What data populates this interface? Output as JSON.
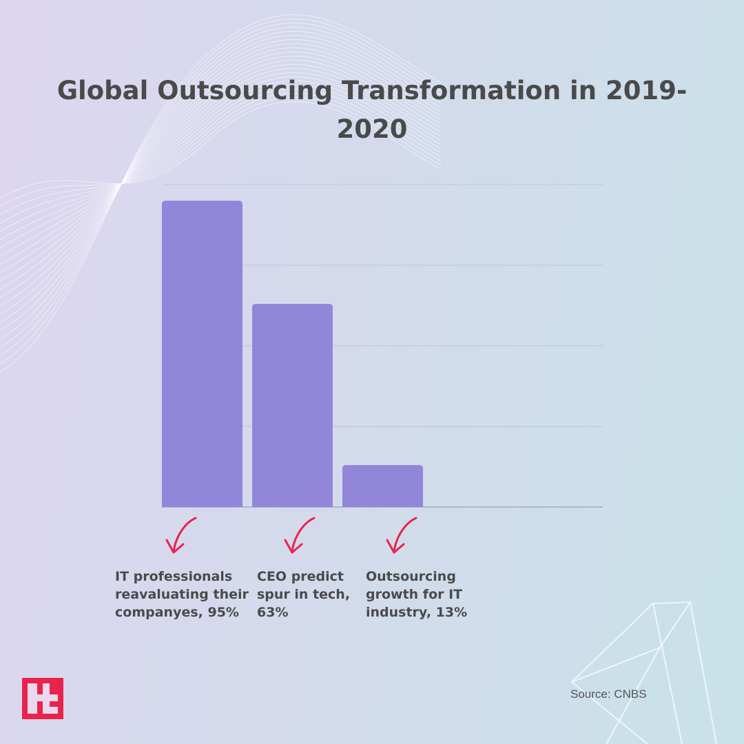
{
  "chart_data": {
    "type": "bar",
    "title": "Global Outsourcing Transformation in 2019-2020",
    "categories": [
      "IT professionals reavaluating their companyes, 95%",
      "CEO predict spur in tech, 63%",
      "Outsourcing growth for IT industry, 13%"
    ],
    "values": [
      95,
      63,
      13
    ],
    "ylim": [
      0,
      100
    ],
    "grid": true,
    "bar_color": "#9286db",
    "arrow_color": "#e8234c"
  },
  "source": "Source: CNBS",
  "logo": {
    "icon": "t-logo-icon",
    "color": "#e8234c"
  }
}
